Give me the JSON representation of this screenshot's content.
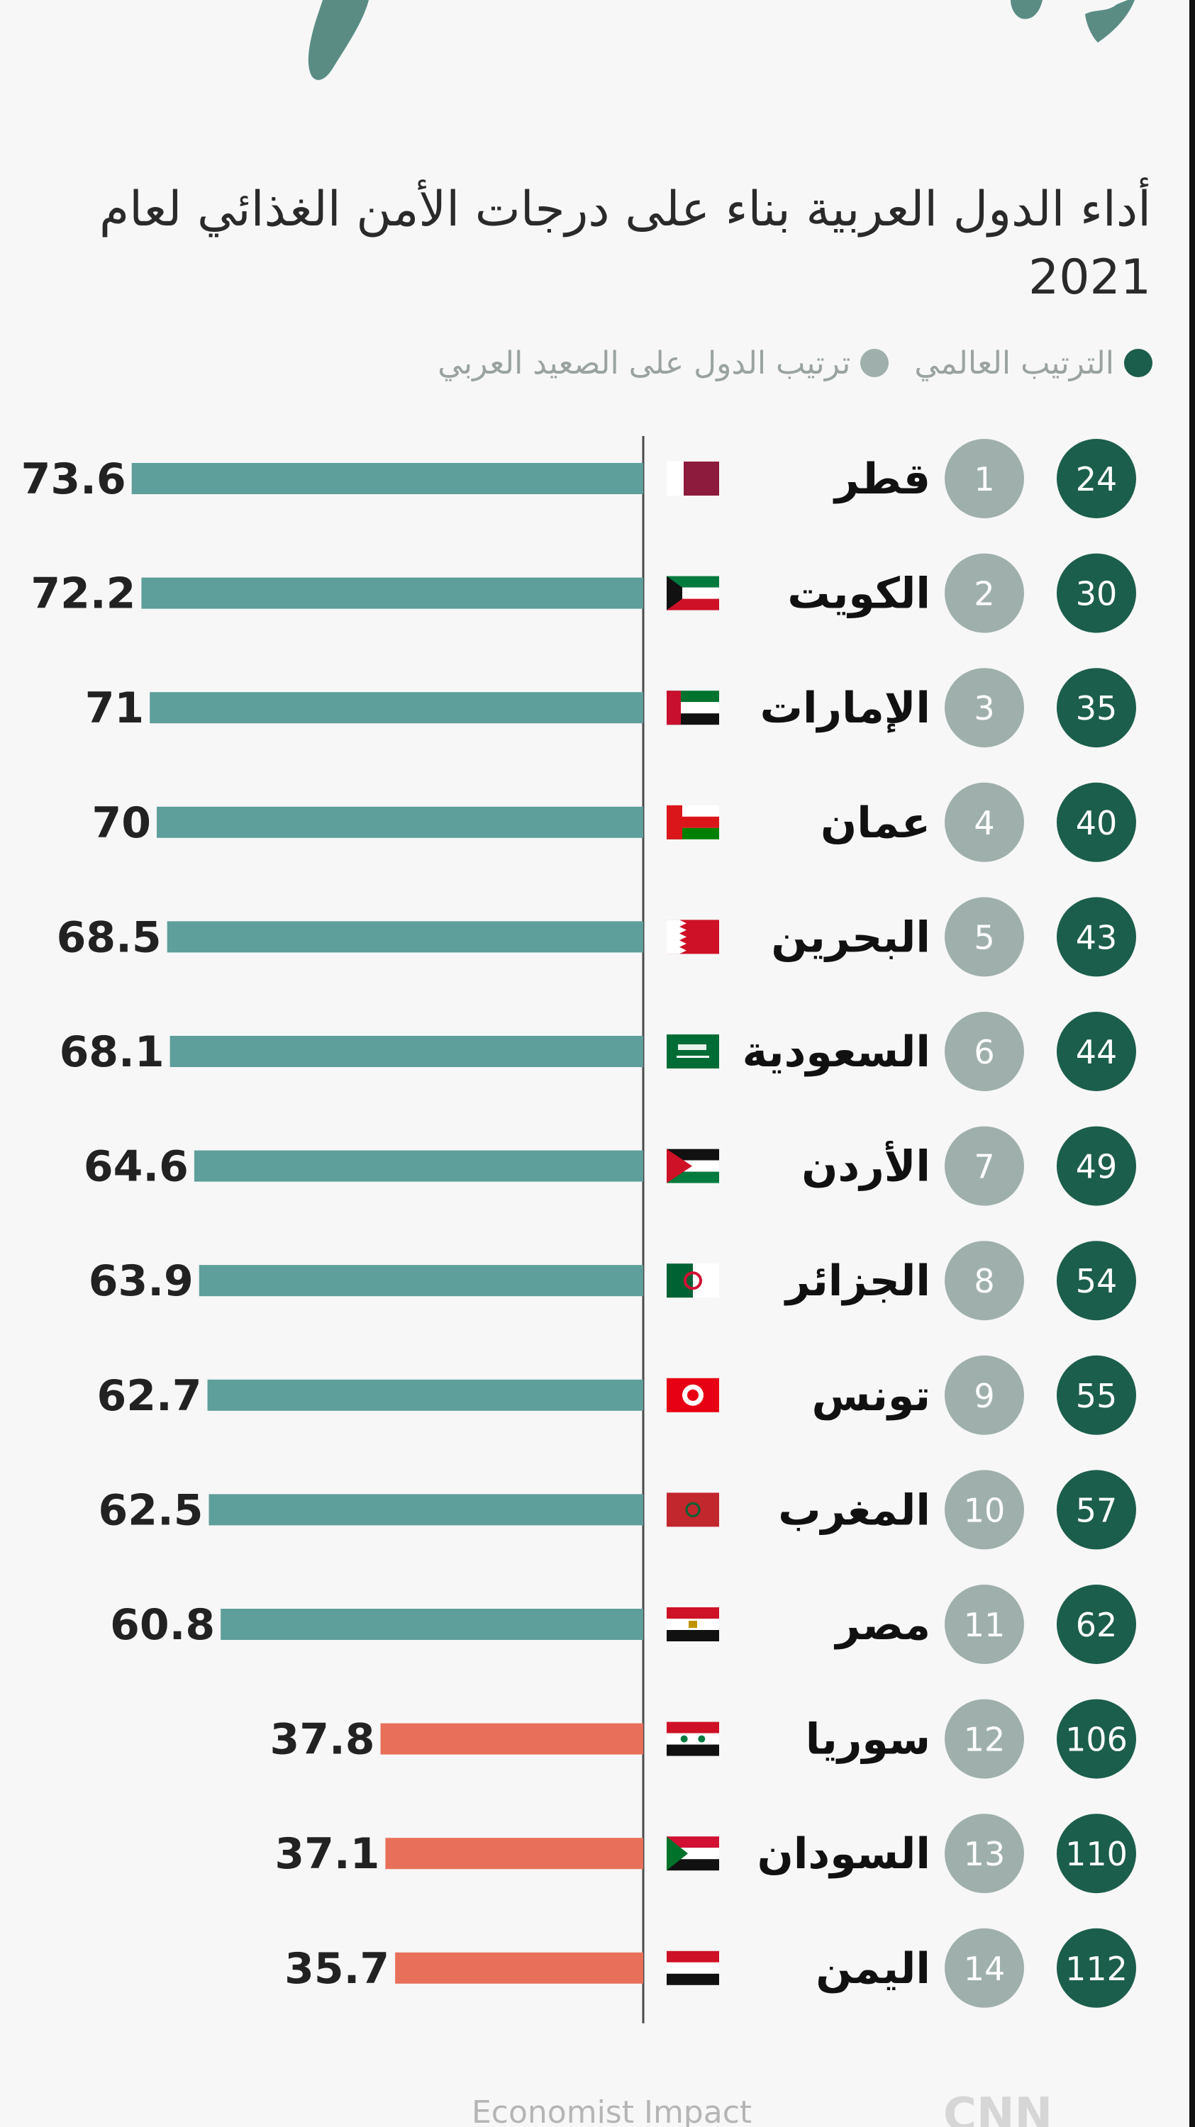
{
  "title": "أداء الدول العربية بناء على درجات الأمن الغذائي لعام 2021",
  "legend": {
    "global": "الترتيب العالمي",
    "arab": "ترتيب الدول على الصعيد العربي"
  },
  "colors": {
    "global_rank": "#1b5e4b",
    "arab_rank": "#9fb0ac",
    "bar_high": "#5e9e9b",
    "bar_low": "#e8705a"
  },
  "footer": {
    "source": "Economist Impact",
    "logo": "CNN"
  },
  "chart_data": {
    "type": "bar",
    "orientation": "horizontal",
    "title": "أداء الدول العربية بناء على درجات الأمن الغذائي لعام 2021",
    "categories": [
      "قطر",
      "الكويت",
      "الإمارات",
      "عمان",
      "البحرين",
      "السعودية",
      "الأردن",
      "الجزائر",
      "تونس",
      "المغرب",
      "مصر",
      "سوريا",
      "السودان",
      "اليمن"
    ],
    "values": [
      73.6,
      72.2,
      71,
      70,
      68.5,
      68.1,
      64.6,
      63.9,
      62.7,
      62.5,
      60.8,
      37.8,
      37.1,
      35.7
    ],
    "value_labels": [
      "73.6",
      "72.2",
      "71",
      "70",
      "68.5",
      "68.1",
      "64.6",
      "63.9",
      "62.7",
      "62.5",
      "60.8",
      "37.8",
      "37.1",
      "35.7"
    ],
    "arab_rank": [
      "1",
      "2",
      "3",
      "4",
      "5",
      "6",
      "7",
      "8",
      "9",
      "10",
      "11",
      "12",
      "13",
      "14"
    ],
    "global_rank": [
      "24",
      "30",
      "35",
      "40",
      "43",
      "44",
      "49",
      "54",
      "55",
      "57",
      "62",
      "106",
      "110",
      "112"
    ],
    "flags": [
      "qatar",
      "kuwait",
      "uae",
      "oman",
      "bahrain",
      "saudi",
      "jordan",
      "algeria",
      "tunisia",
      "morocco",
      "egypt",
      "syria",
      "sudan",
      "yemen"
    ],
    "bar_color_group": [
      "high",
      "high",
      "high",
      "high",
      "high",
      "high",
      "high",
      "high",
      "high",
      "high",
      "high",
      "low",
      "low",
      "low"
    ],
    "xlabel": "",
    "ylabel": "",
    "grid": false,
    "legend_position": "top-right"
  }
}
